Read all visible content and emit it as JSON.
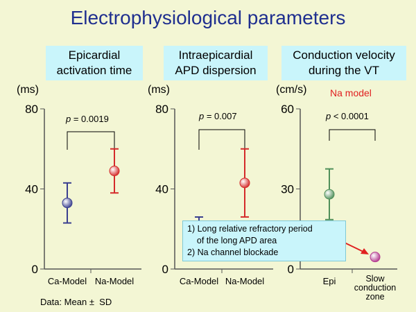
{
  "title": "Electrophysiological parameters",
  "panels": [
    {
      "title": "Epicardial\nactivation time",
      "unit": "(ms)"
    },
    {
      "title": "Intraepicardial\nAPD dispersion",
      "unit": "(ms)"
    },
    {
      "title": "Conduction velocity\nduring the VT",
      "unit": "(cm/s)"
    }
  ],
  "model_tag": "Na model",
  "callout": {
    "line1": "1) Long relative refractory period",
    "line2": "    of the long APD area",
    "line3": "2) Na channel blockade"
  },
  "footnote": "Data: Mean ±  SD",
  "colors": {
    "ca": "#3a3f8f",
    "na": "#d42a2a",
    "epi": "#4f8f5a",
    "slow": "#b33a8f",
    "bracket": "#000000"
  },
  "chart_data": [
    {
      "type": "scatter",
      "title": "Epicardial activation time",
      "ylabel": "(ms)",
      "ylim": [
        0,
        80
      ],
      "yticks": [
        "0",
        "40",
        "80"
      ],
      "categories": [
        "Ca-Model",
        "Na-Model"
      ],
      "values": [
        33,
        49
      ],
      "errors": [
        10,
        11
      ],
      "colors": [
        "#3a3f8f",
        "#d42a2a"
      ],
      "pvalue": "p = 0.0019"
    },
    {
      "type": "scatter",
      "title": "Intraepicardial APD dispersion",
      "ylabel": "(ms)",
      "ylim": [
        0,
        80
      ],
      "yticks": [
        "0",
        "40",
        "80"
      ],
      "categories": [
        "Ca-Model",
        "Na-Model"
      ],
      "values": [
        null,
        43
      ],
      "errors": [
        null,
        17
      ],
      "colors": [
        "#3a3f8f",
        "#d42a2a"
      ],
      "pvalue": "p = 0.007"
    },
    {
      "type": "scatter",
      "title": "Conduction velocity during the VT",
      "ylabel": "(cm/s)",
      "ylim": [
        0,
        60
      ],
      "yticks": [
        "0",
        "30",
        "60"
      ],
      "categories": [
        "Epi",
        "Slow conduction zone"
      ],
      "values": [
        28,
        4.5
      ],
      "errors": [
        9.5,
        null
      ],
      "colors": [
        "#4f8f5a",
        "#b33a8f"
      ],
      "pvalue": "p < 0.0001"
    }
  ]
}
